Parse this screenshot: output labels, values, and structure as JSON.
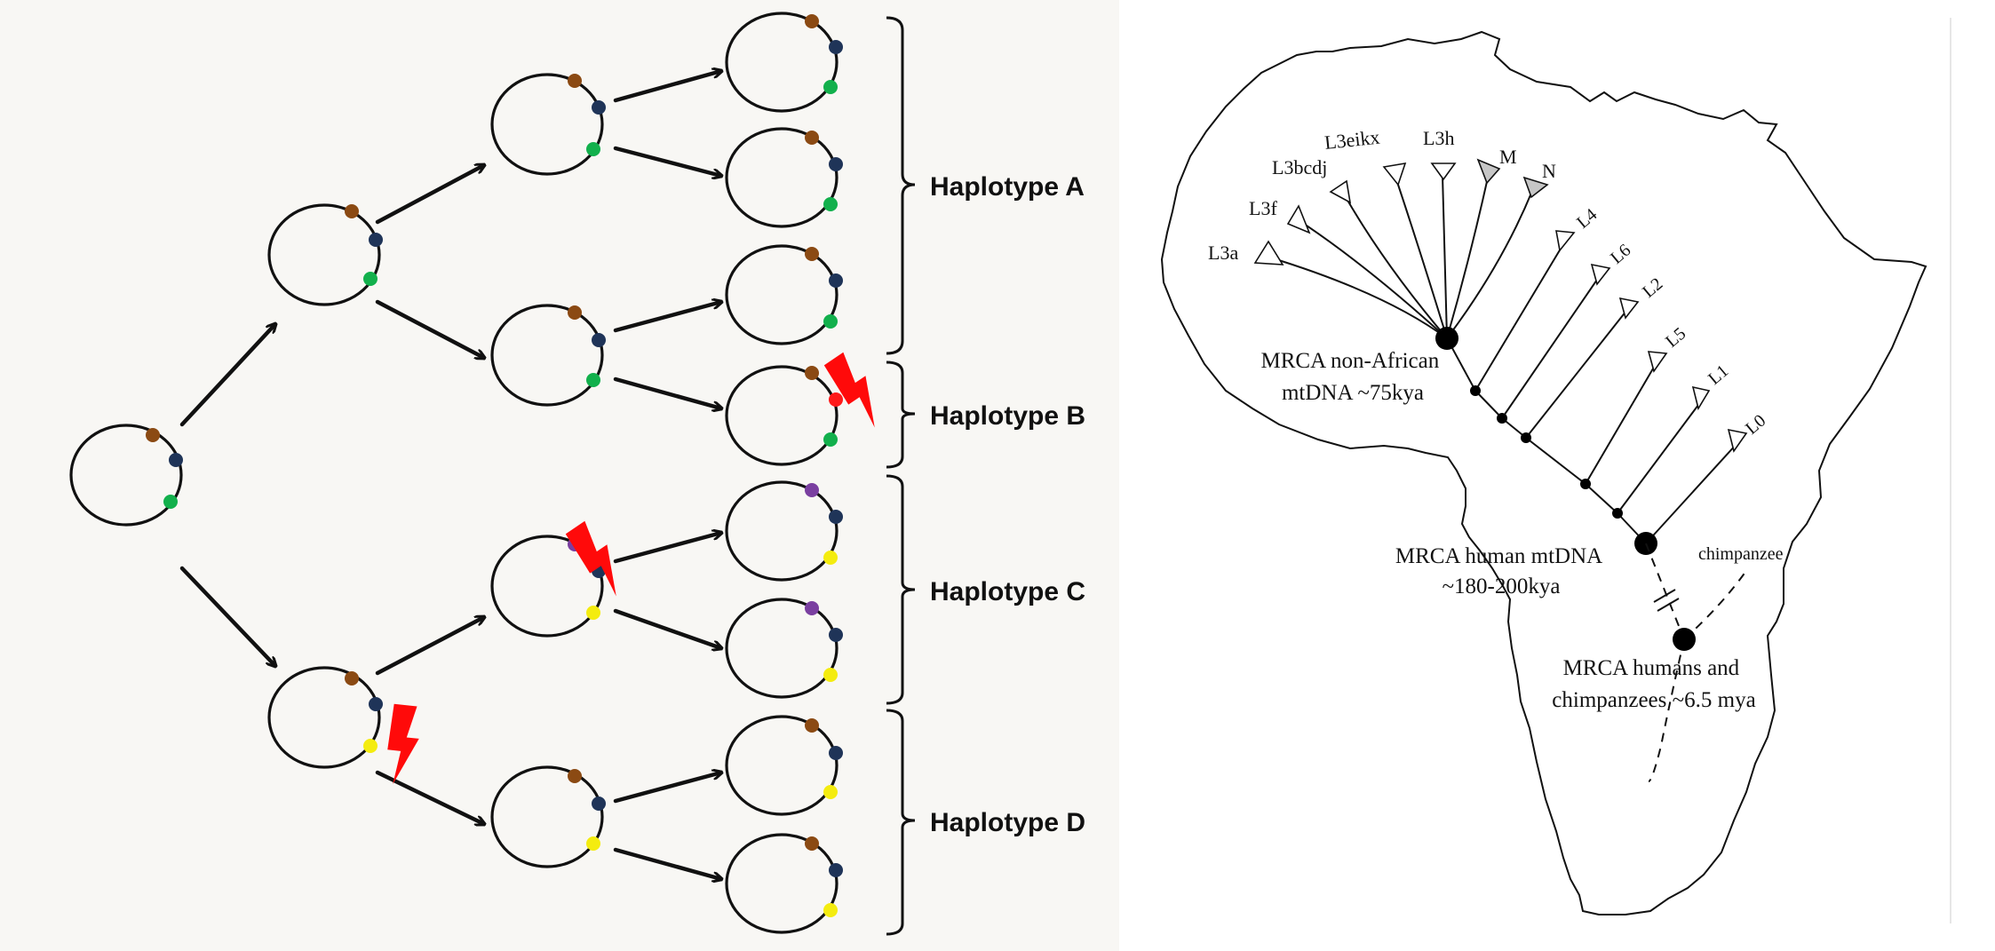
{
  "colors": {
    "left_panel_bg": "#f8f7f4",
    "marker_brown": "#8b4a13",
    "marker_navy": "#1f3458",
    "marker_green": "#12b04c",
    "marker_yellow": "#f4ec0f",
    "marker_purple": "#7a3fa0",
    "marker_red": "#ff1a1a",
    "mutation_arrow": "#ff0a0a",
    "collapsed_clade_fill": "#c6c6c6"
  },
  "haplotypes": {
    "a": "Haplotype A",
    "b": "Haplotype B",
    "c": "Haplotype C",
    "d": "Haplotype D"
  },
  "tree": {
    "haplogroups": {
      "l3a": "L3a",
      "l3f": "L3f",
      "l3bcdj": "L3bcdj",
      "l3eikx": "L3eikx",
      "l3h": "L3h",
      "m": "M",
      "n": "N",
      "l4": "L4",
      "l6": "L6",
      "l2": "L2",
      "l5": "L5",
      "l1": "L1",
      "l0": "L0"
    },
    "mrca_non_african": [
      "MRCA non-African",
      "mtDNA ~75kya"
    ],
    "mrca_human": [
      "MRCA human mtDNA",
      "~180-200kya"
    ],
    "mrca_humans_chimps": [
      "MRCA humans and",
      "chimpanzees ~6.5 mya"
    ],
    "chimpanzee": "chimpanzee"
  },
  "icons": {
    "mutation": "lightning-bolt-icon",
    "collapsed_clade": "triangle-icon",
    "outline": "africa-outline-icon"
  }
}
